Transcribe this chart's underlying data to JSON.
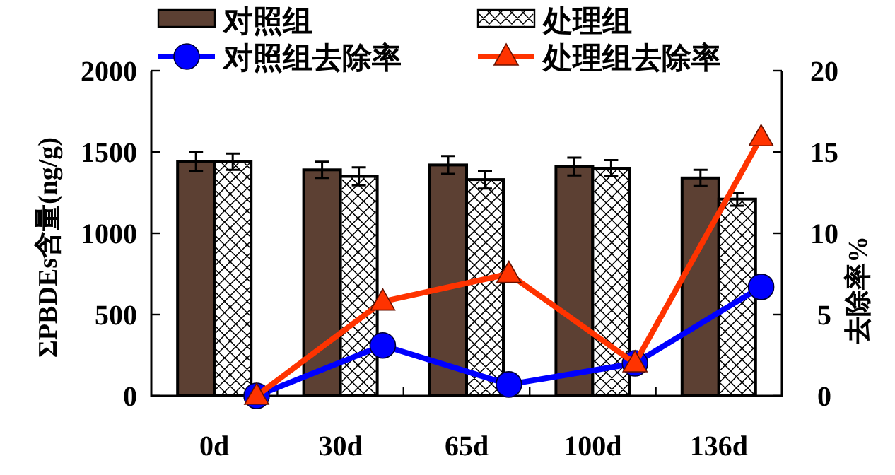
{
  "chart_data": {
    "type": "bar",
    "categories": [
      "0d",
      "30d",
      "65d",
      "100d",
      "136d"
    ],
    "ylabel": "ΣPBDEs含量(ng/g)",
    "y2label": "去除率%",
    "ylim": [
      0,
      2000
    ],
    "yticks": [
      0,
      500,
      1000,
      1500,
      2000
    ],
    "y2lim": [
      0,
      20
    ],
    "y2ticks": [
      0,
      5,
      10,
      15,
      20
    ],
    "legend": "top",
    "series": [
      {
        "name": "对照组",
        "color": "#5c4033",
        "values": [
          1440,
          1390,
          1420,
          1410,
          1340
        ],
        "errors": [
          60,
          50,
          55,
          55,
          50
        ]
      },
      {
        "name": "处理组",
        "color": "#ffffff",
        "values": [
          1440,
          1350,
          1330,
          1400,
          1210
        ],
        "errors": [
          50,
          55,
          55,
          50,
          40
        ]
      },
      {
        "name": "对照组去除率",
        "type": "line",
        "axis": "y2",
        "color": "#0000ff",
        "marker": "circle",
        "values": [
          0,
          3.1,
          0.7,
          2.0,
          6.7
        ]
      },
      {
        "name": "处理组去除率",
        "type": "line",
        "axis": "y2",
        "color": "#ff3300",
        "marker": "triangle",
        "values": [
          0,
          5.8,
          7.5,
          2.0,
          15.9
        ]
      }
    ]
  }
}
